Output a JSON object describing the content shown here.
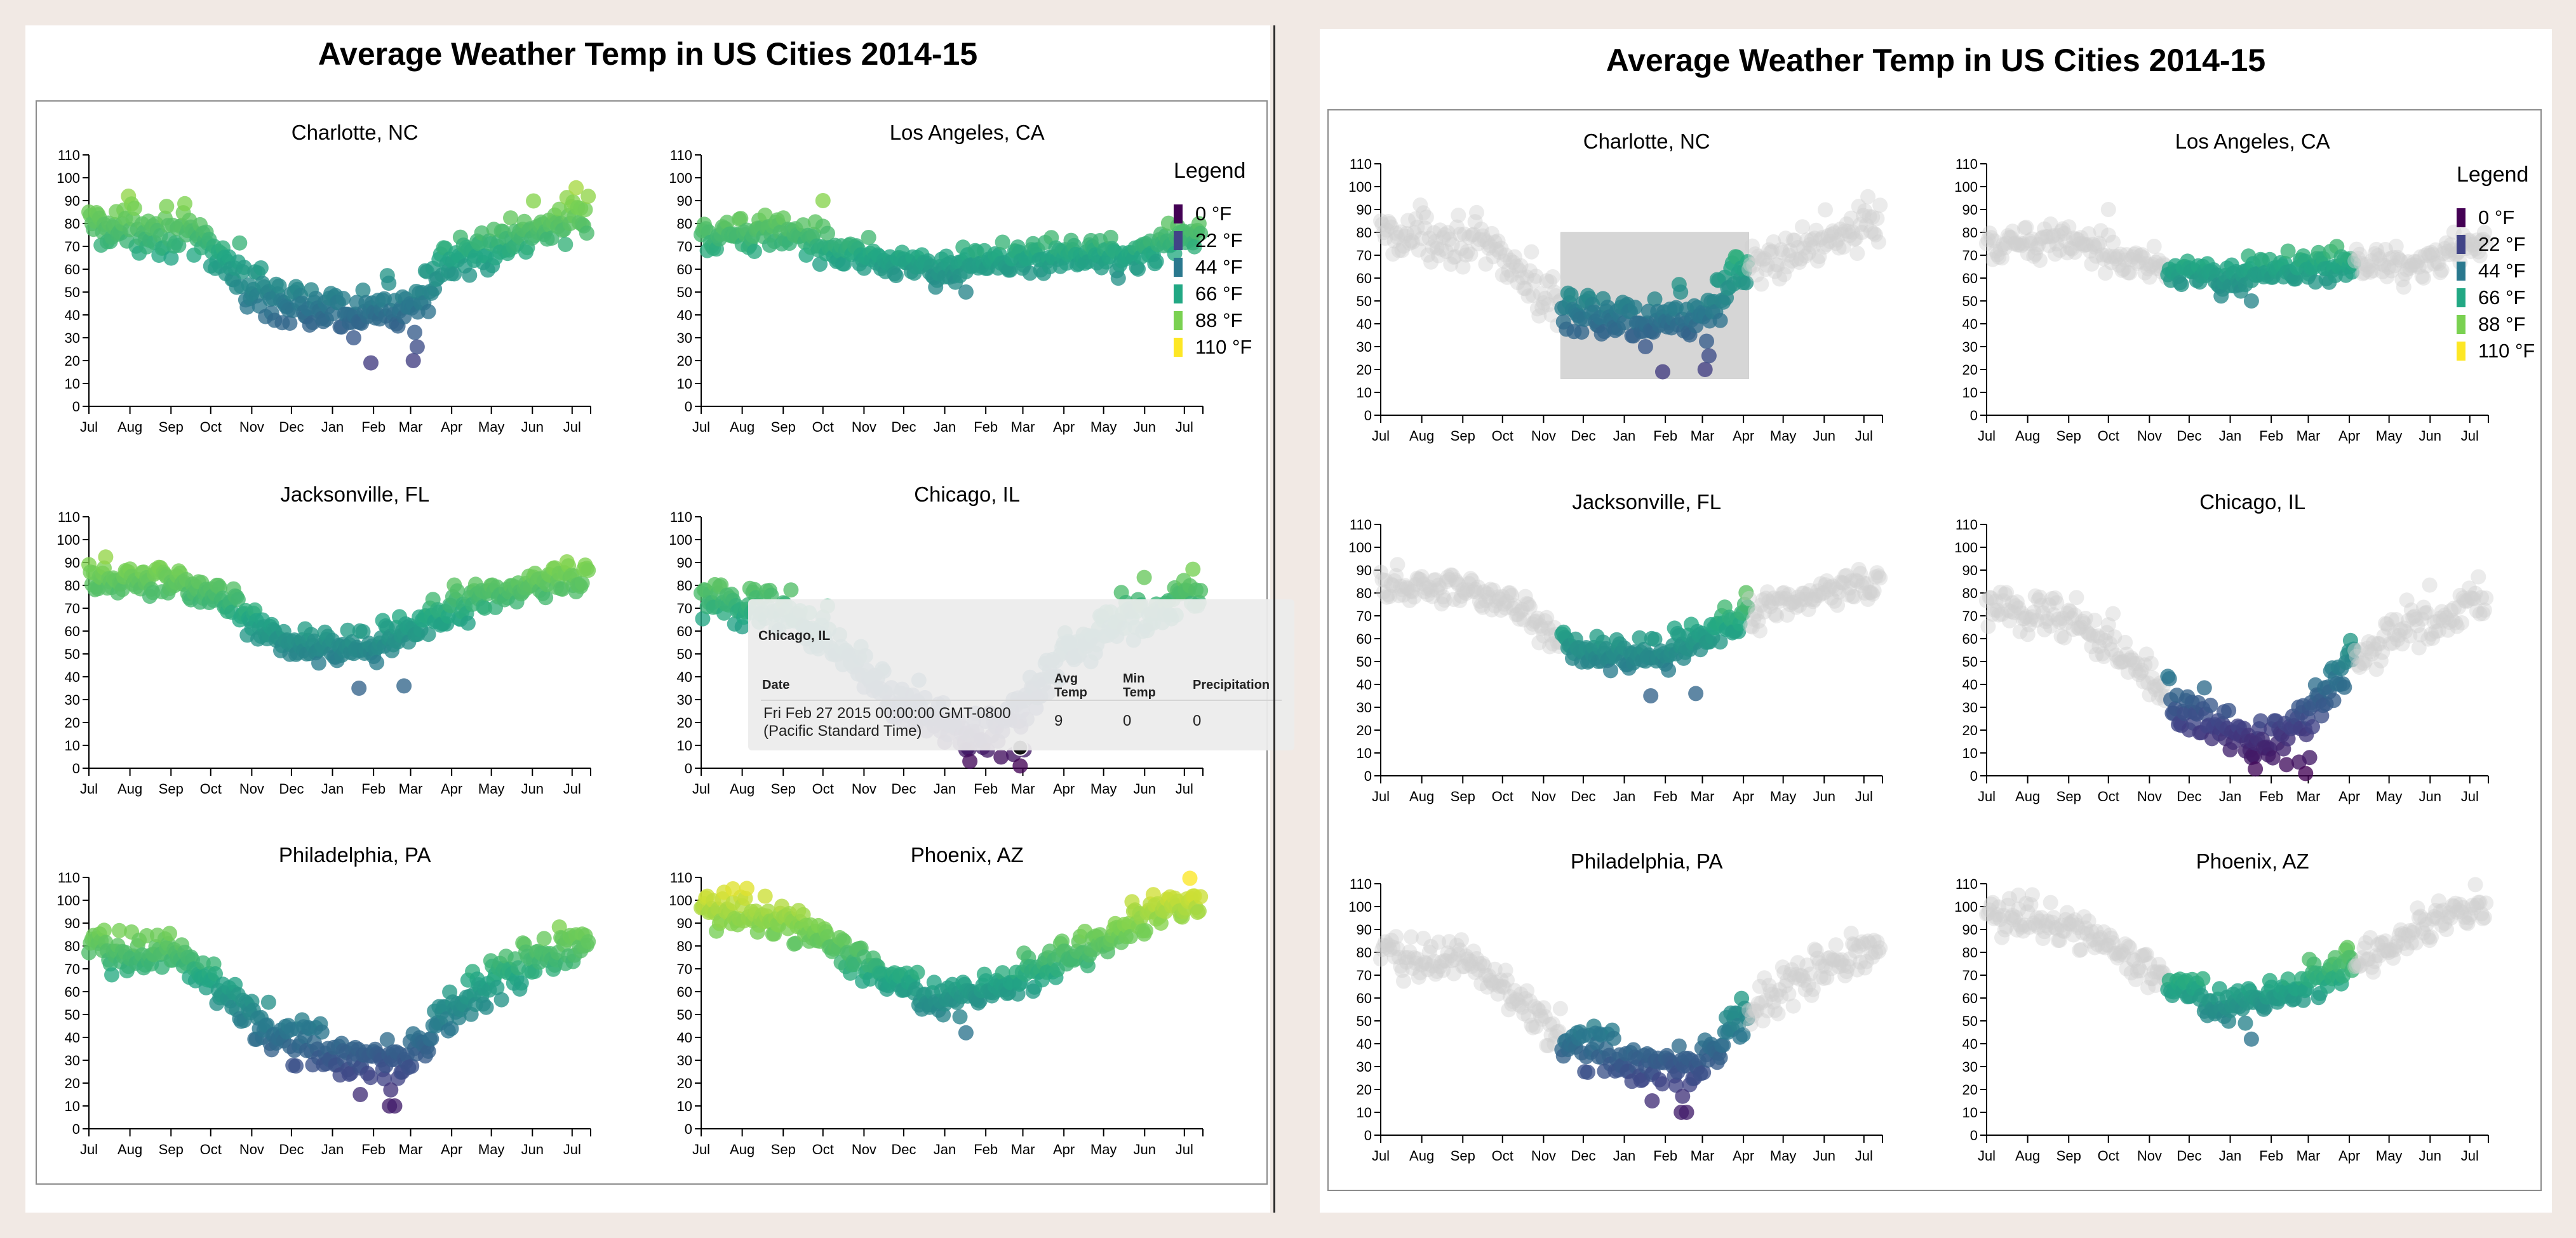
{
  "panels": {
    "left": {
      "title": "Average Weather Temp in US Cities 2014-15"
    },
    "right": {
      "title": "Average Weather Temp in US Cities 2014-15"
    }
  },
  "legend": {
    "title": "Legend",
    "items": [
      {
        "label": "0 °F",
        "color": "#440154"
      },
      {
        "label": "22 °F",
        "color": "#414487"
      },
      {
        "label": "44 °F",
        "color": "#2a788e"
      },
      {
        "label": "66 °F",
        "color": "#22a884"
      },
      {
        "label": "88 °F",
        "color": "#7ad151"
      },
      {
        "label": "110 °F",
        "color": "#fde725"
      }
    ]
  },
  "tooltip": {
    "city": "Chicago, IL",
    "headers": {
      "date": "Date",
      "avg_l1": "Avg",
      "avg_l2": "Temp",
      "min_l1": "Min",
      "min_l2": "Temp",
      "precip": "Precipitation"
    },
    "row": {
      "date_l1": "Fri Feb 27 2015 00:00:00 GMT-0800",
      "date_l2": "(Pacific Standard Time)",
      "avg": "9",
      "min": "0",
      "precip": "0"
    }
  },
  "brush": {
    "city": "Charlotte, NC",
    "date_range": [
      "2014-11-14",
      "2015-04-05"
    ],
    "temp_range": [
      16,
      80
    ]
  },
  "chart_data": {
    "type": "scatter",
    "x_label_months": [
      "Jul",
      "Aug",
      "Sep",
      "Oct",
      "Nov",
      "Dec",
      "Jan",
      "Feb",
      "Mar",
      "Apr",
      "May",
      "Jun",
      "Jul"
    ],
    "x_range": [
      "2014-07-01",
      "2015-07-15"
    ],
    "ylim": [
      0,
      110
    ],
    "y_ticks": [
      0,
      10,
      20,
      30,
      40,
      50,
      60,
      70,
      80,
      90,
      100,
      110
    ],
    "color_scale": {
      "name": "viridis",
      "domain": [
        0,
        110
      ]
    },
    "highlight": {
      "city": "Chicago, IL",
      "date": "2015-02-27",
      "avg_temp": 9
    },
    "cities": [
      {
        "name": "Charlotte, NC",
        "monthly_avg": [
          79,
          79,
          77,
          70,
          52,
          45,
          40,
          42,
          45,
          62,
          70,
          77,
          84
        ],
        "spread": 7,
        "min_points": [
          [
            200,
            30
          ],
          [
            213,
            19
          ],
          [
            245,
            20
          ],
          [
            248,
            26
          ]
        ]
      },
      {
        "name": "Los Angeles, CA",
        "monthly_avg": [
          72,
          75,
          78,
          72,
          67,
          63,
          57,
          63,
          66,
          67,
          66,
          67,
          74
        ],
        "spread": 5,
        "min_points": [
          [
            92,
            90
          ],
          [
            200,
            50
          ]
        ]
      },
      {
        "name": "Jacksonville, FL",
        "monthly_avg": [
          82,
          83,
          83,
          77,
          65,
          55,
          53,
          53,
          60,
          70,
          75,
          80,
          84
        ],
        "spread": 5,
        "min_points": [
          [
            204,
            35
          ],
          [
            238,
            36
          ]
        ]
      },
      {
        "name": "Chicago, IL",
        "monthly_avg": [
          73,
          72,
          70,
          60,
          40,
          30,
          22,
          15,
          26,
          47,
          60,
          70,
          75
        ],
        "spread": 8,
        "min_points": [
          [
            200,
            8
          ],
          [
            203,
            3
          ],
          [
            236,
            6
          ],
          [
            241,
            1
          ],
          [
            244,
            8
          ]
        ]
      },
      {
        "name": "Philadelphia, PA",
        "monthly_avg": [
          80,
          78,
          77,
          67,
          50,
          40,
          33,
          28,
          33,
          52,
          64,
          73,
          80
        ],
        "spread": 7,
        "min_points": [
          [
            227,
            10
          ],
          [
            231,
            10
          ],
          [
            228,
            17
          ],
          [
            205,
            15
          ]
        ]
      },
      {
        "name": "Phoenix, AZ",
        "monthly_avg": [
          96,
          95,
          92,
          84,
          72,
          63,
          56,
          59,
          67,
          75,
          84,
          93,
          100
        ],
        "spread": 5,
        "min_points": [
          [
            200,
            42
          ],
          [
            24,
            105
          ]
        ]
      }
    ]
  }
}
